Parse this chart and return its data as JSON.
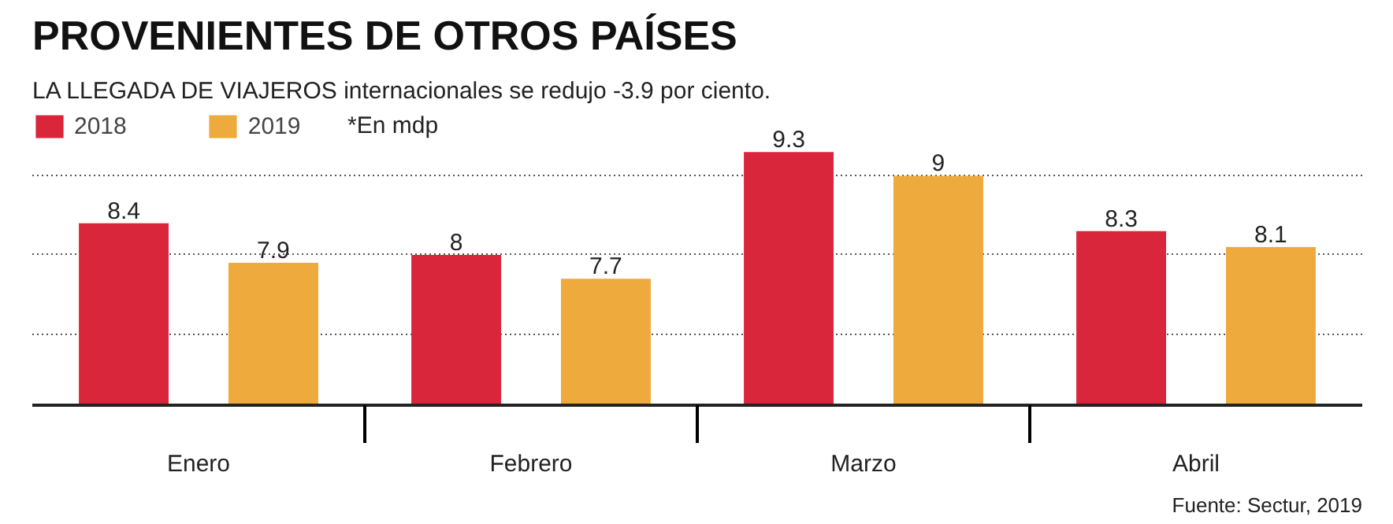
{
  "chart_data": {
    "type": "bar",
    "title": "PROVENIENTES DE OTROS PAÍSES",
    "subtitle": "LA LLEGADA DE VIAJEROS internacionales se redujo -3.9 por ciento.",
    "categories": [
      "Enero",
      "Febrero",
      "Marzo",
      "Abril"
    ],
    "series": [
      {
        "name": "2018",
        "color": "#d9263a",
        "values": [
          8.4,
          8,
          9.3,
          8.3
        ]
      },
      {
        "name": "2019",
        "color": "#eeaa3c",
        "values": [
          7.9,
          7.7,
          9,
          8.1
        ]
      }
    ],
    "ylim": [
      6.1,
      9.8
    ],
    "yticks": [
      {
        "value": 7,
        "label": null
      },
      {
        "value": 8,
        "label": null
      },
      {
        "value": 9,
        "label": null
      }
    ],
    "grid": "y",
    "data_labels": true,
    "legend": "top left",
    "tick_labels": "x",
    "annotations": [
      "*En mdp",
      "Fuente: Sectur, 2019"
    ]
  }
}
